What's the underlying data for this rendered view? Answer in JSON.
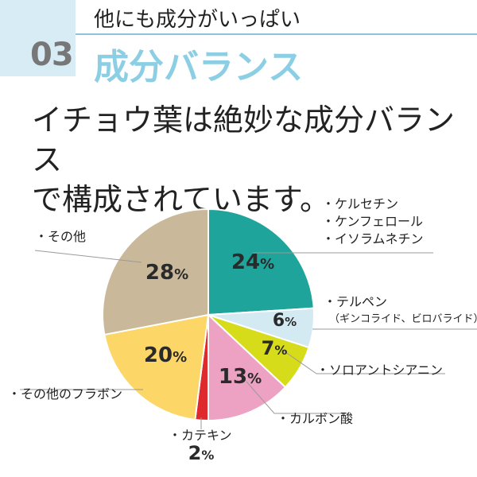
{
  "header": {
    "number": "03",
    "subtitle": "他にも成分がいっぱい",
    "title": "成分バランス"
  },
  "headline": {
    "line1": "イチョウ葉は絶妙な成分バランス",
    "line2": "で構成されています。"
  },
  "chart_data": {
    "type": "pie",
    "unit": "%",
    "start": "top, clockwise",
    "slices": [
      {
        "labels": [
          "・ケルセチン",
          "・ケンフェロール",
          "・イソラムネチン"
        ],
        "value": 24,
        "color": "#1fa49b"
      },
      {
        "labels": [
          "・テルペン",
          "（ギンコライド、ビロバライド）"
        ],
        "value": 6,
        "color": "#d3eaf3"
      },
      {
        "labels": [
          "・ソロアントシアニン"
        ],
        "value": 7,
        "color": "#d6dc1a"
      },
      {
        "labels": [
          "・カルボン酸"
        ],
        "value": 13,
        "color": "#eda1c3"
      },
      {
        "labels": [
          "・カテキン"
        ],
        "value": 2,
        "color": "#de2a2c"
      },
      {
        "labels": [
          "・その他のフラボン"
        ],
        "value": 20,
        "color": "#fcd667"
      },
      {
        "labels": [
          "・その他"
        ],
        "value": 28,
        "color": "#c9b99a"
      }
    ]
  }
}
